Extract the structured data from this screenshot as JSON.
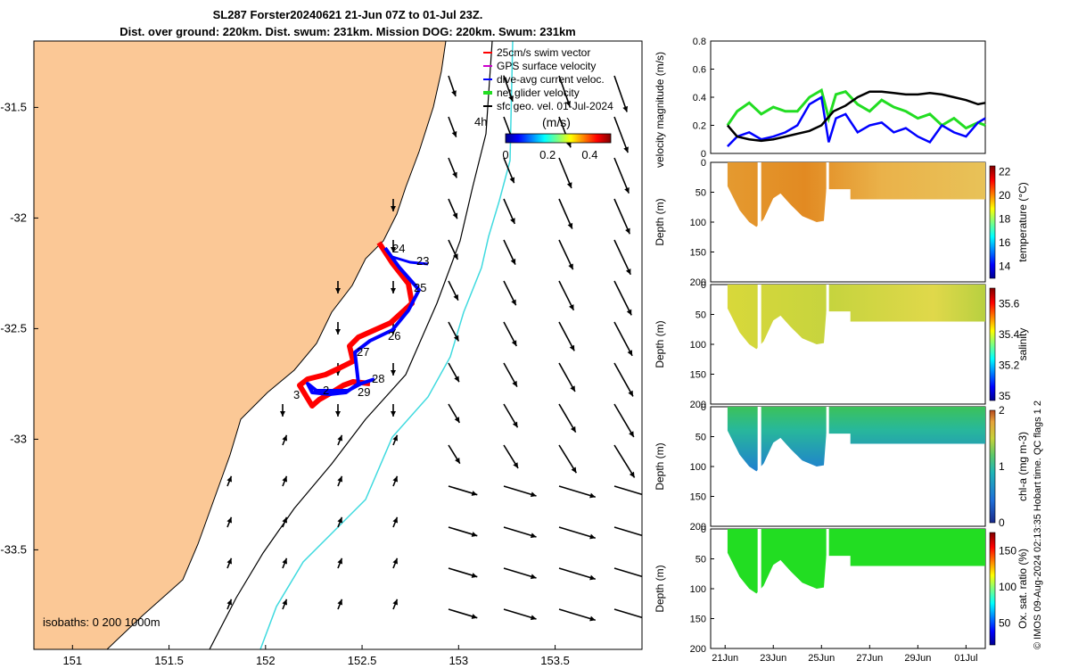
{
  "title": {
    "line1": "SL287 Forster20240621 21-Jun 07Z to 01-Jul 23Z.",
    "line2": "Dist. over ground: 220km. Dist. swum: 231km. Mission DOG: 220km. Swum: 231km"
  },
  "credit": "© IMOS 09-Aug-2024 02:13:35 Hobart time. QC flags 1  2",
  "colors": {
    "land": "#fbc896",
    "track_red": "#ff0000",
    "track_blue": "#0000ff",
    "cyan_isobath": "#3fdadf",
    "net_velocity": "#22dd22",
    "geo_velocity": "#000000"
  },
  "chart_data": [
    {
      "type": "map",
      "xticks": [
        "151",
        "151.5",
        "152",
        "152.5",
        "153",
        "153.5"
      ],
      "yticks": [
        "-31.5",
        "-32",
        "-32.5",
        "-33",
        "-33.5"
      ],
      "xlim": [
        150.8,
        153.95
      ],
      "ylim": [
        -33.95,
        -31.2
      ],
      "legend": [
        {
          "label": "25cm/s swim vector",
          "color": "#ff0000"
        },
        {
          "label": "GPS surface velocity",
          "color": "#cc00cc"
        },
        {
          "label": "dive-avg current veloc.",
          "color": "#0000ff"
        },
        {
          "label": "net glider velocity",
          "color": "#22dd22"
        },
        {
          "label": "sfc geo. vel. 01-Jul-2024",
          "color": "#000000"
        }
      ],
      "colorbar": {
        "label": "(m/s)",
        "ticks": [
          "0",
          "0.2",
          "0.4"
        ],
        "range": [
          0,
          0.5
        ]
      },
      "isobaths_label": "isobaths: 0  200  1000m",
      "track_labels": [
        "24",
        "23",
        "25",
        "26",
        "27",
        "28",
        "29",
        "3",
        "2",
        "4h"
      ]
    },
    {
      "type": "line",
      "ylabel": "velocity magnitude (m/s)",
      "ylim": [
        0,
        0.8
      ],
      "yticks": [
        "0",
        "0.2",
        "0.4",
        "0.6",
        "0.8"
      ],
      "xlim": [
        20.4,
        31.8
      ],
      "series": [
        {
          "color": "#22dd22",
          "x": [
            21.1,
            21.5,
            22,
            22.5,
            23,
            23.5,
            24,
            24.5,
            25,
            25.3,
            25.6,
            26,
            26.5,
            27,
            27.5,
            28,
            28.5,
            29,
            29.5,
            30,
            30.5,
            31,
            31.5,
            31.8
          ],
          "y": [
            0.2,
            0.3,
            0.36,
            0.28,
            0.33,
            0.3,
            0.3,
            0.4,
            0.45,
            0.25,
            0.42,
            0.44,
            0.35,
            0.3,
            0.38,
            0.33,
            0.3,
            0.25,
            0.28,
            0.2,
            0.25,
            0.18,
            0.22,
            0.2
          ]
        },
        {
          "color": "#0000ff",
          "x": [
            21.1,
            21.5,
            22,
            22.5,
            23,
            23.5,
            24,
            24.5,
            25,
            25.3,
            25.6,
            26,
            26.5,
            27,
            27.5,
            28,
            28.5,
            29,
            29.5,
            30,
            30.5,
            31,
            31.5,
            31.8
          ],
          "y": [
            0.05,
            0.12,
            0.15,
            0.1,
            0.12,
            0.15,
            0.2,
            0.35,
            0.4,
            0.08,
            0.25,
            0.28,
            0.15,
            0.2,
            0.22,
            0.15,
            0.18,
            0.12,
            0.08,
            0.2,
            0.15,
            0.12,
            0.22,
            0.25
          ]
        },
        {
          "color": "#000000",
          "x": [
            21.1,
            21.5,
            22,
            22.5,
            23,
            23.5,
            24,
            24.5,
            25,
            25.5,
            26,
            26.5,
            27,
            27.5,
            28,
            28.5,
            29,
            29.5,
            30,
            30.5,
            31,
            31.5,
            31.8
          ],
          "y": [
            0.2,
            0.12,
            0.1,
            0.09,
            0.1,
            0.12,
            0.14,
            0.16,
            0.2,
            0.3,
            0.34,
            0.4,
            0.44,
            0.44,
            0.43,
            0.42,
            0.42,
            0.43,
            0.42,
            0.4,
            0.38,
            0.35,
            0.36
          ]
        }
      ],
      "x_ticks": [
        "21Jun",
        "23Jun",
        "25Jun",
        "27Jun",
        "29Jun",
        "01Jul"
      ]
    },
    {
      "type": "heatmap",
      "ylabel": "Depth (m)",
      "ylim": [
        200,
        0
      ],
      "yticks": [
        "0",
        "50",
        "100",
        "150",
        "200"
      ],
      "colorbar_label": "temperature (°C)",
      "colorbar_ticks": [
        "14",
        "16",
        "18",
        "20",
        "22"
      ],
      "colorbar_range": [
        13,
        22.5
      ],
      "typical_value": 20.5
    },
    {
      "type": "heatmap",
      "ylabel": "Depth (m)",
      "ylim": [
        200,
        0
      ],
      "yticks": [
        "0",
        "50",
        "100",
        "150",
        "200"
      ],
      "colorbar_label": "salinity",
      "colorbar_ticks": [
        "35",
        "35.2",
        "35.4",
        "35.6"
      ],
      "colorbar_range": [
        34.97,
        35.7
      ],
      "typical_value": 35.5
    },
    {
      "type": "heatmap",
      "ylabel": "Depth (m)",
      "ylim": [
        200,
        0
      ],
      "yticks": [
        "0",
        "50",
        "100",
        "150",
        "200"
      ],
      "colorbar_label": "chl-a (mg m-3)",
      "colorbar_ticks": [
        "0",
        "1",
        "2"
      ],
      "colorbar_range": [
        0,
        2
      ],
      "typical_value": 0.9
    },
    {
      "type": "heatmap",
      "ylabel": "Depth (m)",
      "ylim": [
        200,
        0
      ],
      "yticks": [
        "0",
        "50",
        "100",
        "150",
        "200"
      ],
      "colorbar_label": "Ox. sat. ratio (%)",
      "colorbar_ticks": [
        "50",
        "100",
        "150"
      ],
      "colorbar_range": [
        20,
        175
      ],
      "typical_value": 100,
      "x_ticks": [
        "21Jun",
        "23Jun",
        "25Jun",
        "27Jun",
        "29Jun",
        "01Jul"
      ]
    }
  ]
}
